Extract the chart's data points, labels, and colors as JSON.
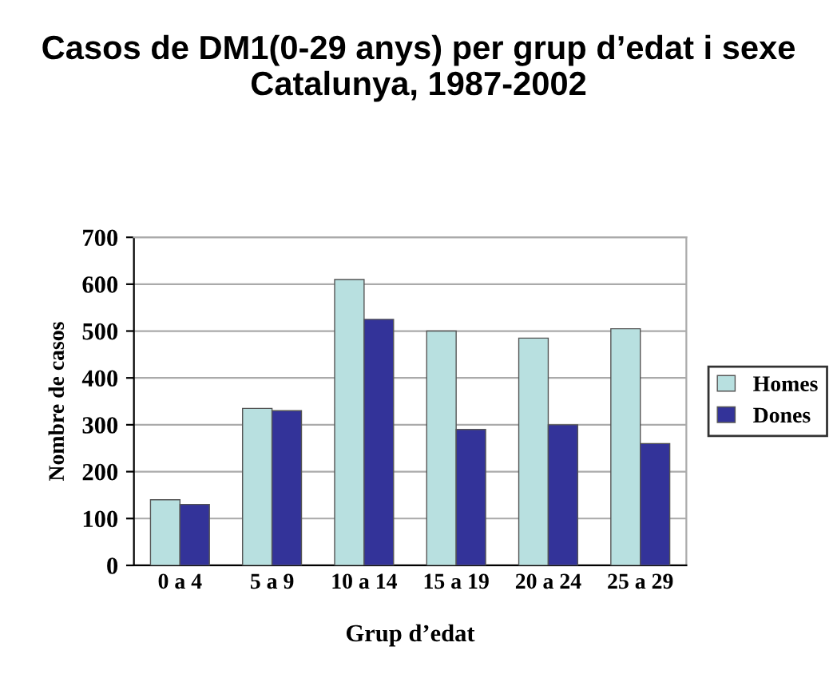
{
  "chart_data": {
    "type": "bar",
    "title": "Casos de DM1(0-29 anys) per grup d’edat i sexe\nCatalunya, 1987-2002",
    "xlabel": "Grup d’edat",
    "ylabel": "Nombre de casos",
    "categories": [
      "0 a 4",
      "5 a 9",
      "10 a 14",
      "15 a 19",
      "20 a 24",
      "25 a 29"
    ],
    "series": [
      {
        "name": "Homes",
        "color": "#b8e0e0",
        "values": [
          140,
          335,
          610,
          500,
          485,
          505
        ]
      },
      {
        "name": "Dones",
        "color": "#333399",
        "values": [
          130,
          330,
          525,
          290,
          300,
          260
        ]
      }
    ],
    "ylim": [
      0,
      700
    ],
    "yticks": [
      0,
      100,
      200,
      300,
      400,
      500,
      600,
      700
    ],
    "grid": "y",
    "legend": "right"
  }
}
